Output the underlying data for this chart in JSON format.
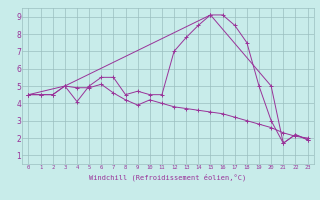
{
  "title": "",
  "xlabel": "Windchill (Refroidissement éolien,°C)",
  "bg_color": "#c8ecea",
  "grid_color": "#9bbfbf",
  "line_color": "#993399",
  "xlim": [
    -0.5,
    23.5
  ],
  "ylim": [
    0.5,
    9.5
  ],
  "xticks": [
    0,
    1,
    2,
    3,
    4,
    5,
    6,
    7,
    8,
    9,
    10,
    11,
    12,
    13,
    14,
    15,
    16,
    17,
    18,
    19,
    20,
    21,
    22,
    23
  ],
  "yticks": [
    1,
    2,
    3,
    4,
    5,
    6,
    7,
    8,
    9
  ],
  "line1_x": [
    0,
    1,
    2,
    3,
    4,
    5,
    6,
    7,
    8,
    9,
    10,
    11,
    12,
    13,
    14,
    15,
    16,
    17,
    18,
    19,
    20,
    21,
    22,
    23
  ],
  "line1_y": [
    4.5,
    4.5,
    4.5,
    5.0,
    4.1,
    5.0,
    5.5,
    5.5,
    4.5,
    4.7,
    4.5,
    4.5,
    7.0,
    7.8,
    8.5,
    9.1,
    9.1,
    8.5,
    7.5,
    5.0,
    3.0,
    1.7,
    2.2,
    1.9
  ],
  "line2_x": [
    0,
    1,
    2,
    3,
    4,
    5,
    6,
    7,
    8,
    9,
    10,
    11,
    12,
    13,
    14,
    15,
    16,
    17,
    18,
    19,
    20,
    21,
    22,
    23
  ],
  "line2_y": [
    4.5,
    4.5,
    4.5,
    5.0,
    4.9,
    4.9,
    5.1,
    4.6,
    4.2,
    3.9,
    4.2,
    4.0,
    3.8,
    3.7,
    3.6,
    3.5,
    3.4,
    3.2,
    3.0,
    2.8,
    2.6,
    2.3,
    2.1,
    2.0
  ],
  "line3_x": [
    0,
    3,
    15,
    20,
    21,
    22,
    23
  ],
  "line3_y": [
    4.5,
    5.0,
    9.1,
    5.0,
    1.7,
    2.2,
    1.9
  ]
}
